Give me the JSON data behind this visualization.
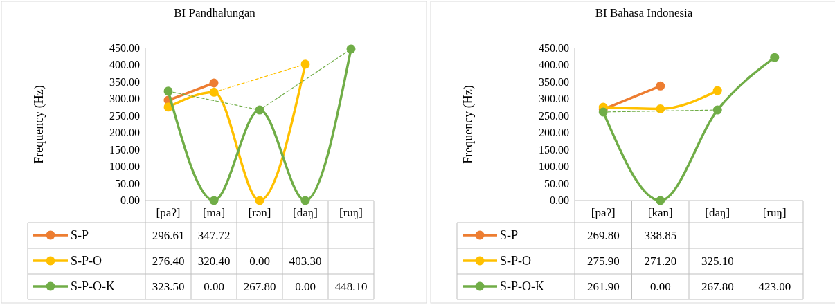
{
  "chart_data": [
    {
      "type": "line",
      "title": "BI Pandhalungan",
      "ylabel": "Frequency (Hz)",
      "categories": [
        "[paʔ]",
        "[ma]",
        "[rən]",
        "[daŋ]",
        "[ruŋ]"
      ],
      "ylim": [
        0,
        450
      ],
      "yticks": [
        {
          "value": 0,
          "label": "0.00"
        },
        {
          "value": 50,
          "label": "50.00"
        },
        {
          "value": 100,
          "label": "100.00"
        },
        {
          "value": 150,
          "label": "150.00"
        },
        {
          "value": 200,
          "label": "200.00"
        },
        {
          "value": 250,
          "label": "250.00"
        },
        {
          "value": 300,
          "label": "300.00"
        },
        {
          "value": 350,
          "label": "350.00"
        },
        {
          "value": 400,
          "label": "400.00"
        },
        {
          "value": 450,
          "label": "450.00"
        }
      ],
      "grid": false,
      "legend": "bottom",
      "series": [
        {
          "name": "S-P",
          "color": "#ed7d31",
          "marker": "circle",
          "line_style": "solid",
          "values": [
            296.61,
            347.72,
            null,
            null,
            null
          ],
          "value_labels": [
            "296.61",
            "347.72",
            null,
            null,
            null
          ]
        },
        {
          "name": "S-P-O",
          "color": "#ffc000",
          "marker": "circle",
          "line_style": "solid",
          "values": [
            276.4,
            320.4,
            0.0,
            403.3,
            null
          ],
          "value_labels": [
            "276.40",
            "320.40",
            "0.00",
            "403.30",
            null
          ]
        },
        {
          "name": "S-P-O-K",
          "color": "#70ad47",
          "marker": "circle",
          "line_style": "solid",
          "values": [
            323.5,
            0.0,
            267.8,
            0.0,
            448.1
          ],
          "value_labels": [
            "323.50",
            "0.00",
            "267.80",
            "0.00",
            "448.10"
          ]
        },
        {
          "color": "#ffc000",
          "marker": "none",
          "line_style": "dashed",
          "values": [
            null,
            320.4,
            null,
            403.3,
            null
          ]
        },
        {
          "color": "#70ad47",
          "marker": "none",
          "line_style": "dashed",
          "values": [
            323.5,
            null,
            267.8,
            null,
            448.1
          ]
        }
      ]
    },
    {
      "type": "line",
      "title": "BI Bahasa Indonesia",
      "ylabel": "Frequency (Hz)",
      "categories": [
        "[paʔ]",
        "[kan]",
        "[daŋ]",
        "[ruŋ]"
      ],
      "ylim": [
        0,
        450
      ],
      "yticks": [
        {
          "value": 0,
          "label": "0.00"
        },
        {
          "value": 50,
          "label": "50.00"
        },
        {
          "value": 100,
          "label": "100.00"
        },
        {
          "value": 150,
          "label": "150.00"
        },
        {
          "value": 200,
          "label": "200.00"
        },
        {
          "value": 250,
          "label": "250.00"
        },
        {
          "value": 300,
          "label": "300.00"
        },
        {
          "value": 350,
          "label": "350.00"
        },
        {
          "value": 400,
          "label": "400.00"
        },
        {
          "value": 450,
          "label": "450.00"
        }
      ],
      "grid": false,
      "legend": "bottom",
      "series": [
        {
          "name": "S-P",
          "color": "#ed7d31",
          "marker": "circle",
          "line_style": "solid",
          "values": [
            269.8,
            338.85,
            null,
            null
          ],
          "value_labels": [
            "269.80",
            "338.85",
            null,
            null
          ]
        },
        {
          "name": "S-P-O",
          "color": "#ffc000",
          "marker": "circle",
          "line_style": "solid",
          "values": [
            275.9,
            271.2,
            325.1,
            null
          ],
          "value_labels": [
            "275.90",
            "271.20",
            "325.10",
            null
          ]
        },
        {
          "name": "S-P-O-K",
          "color": "#70ad47",
          "marker": "circle",
          "line_style": "solid",
          "values": [
            261.9,
            0.0,
            267.8,
            423.0
          ],
          "value_labels": [
            "261.90",
            "0.00",
            "267.80",
            "423.00"
          ]
        },
        {
          "color": "#70ad47",
          "marker": "none",
          "line_style": "dashed",
          "values": [
            261.9,
            null,
            267.8,
            null
          ]
        }
      ]
    }
  ]
}
